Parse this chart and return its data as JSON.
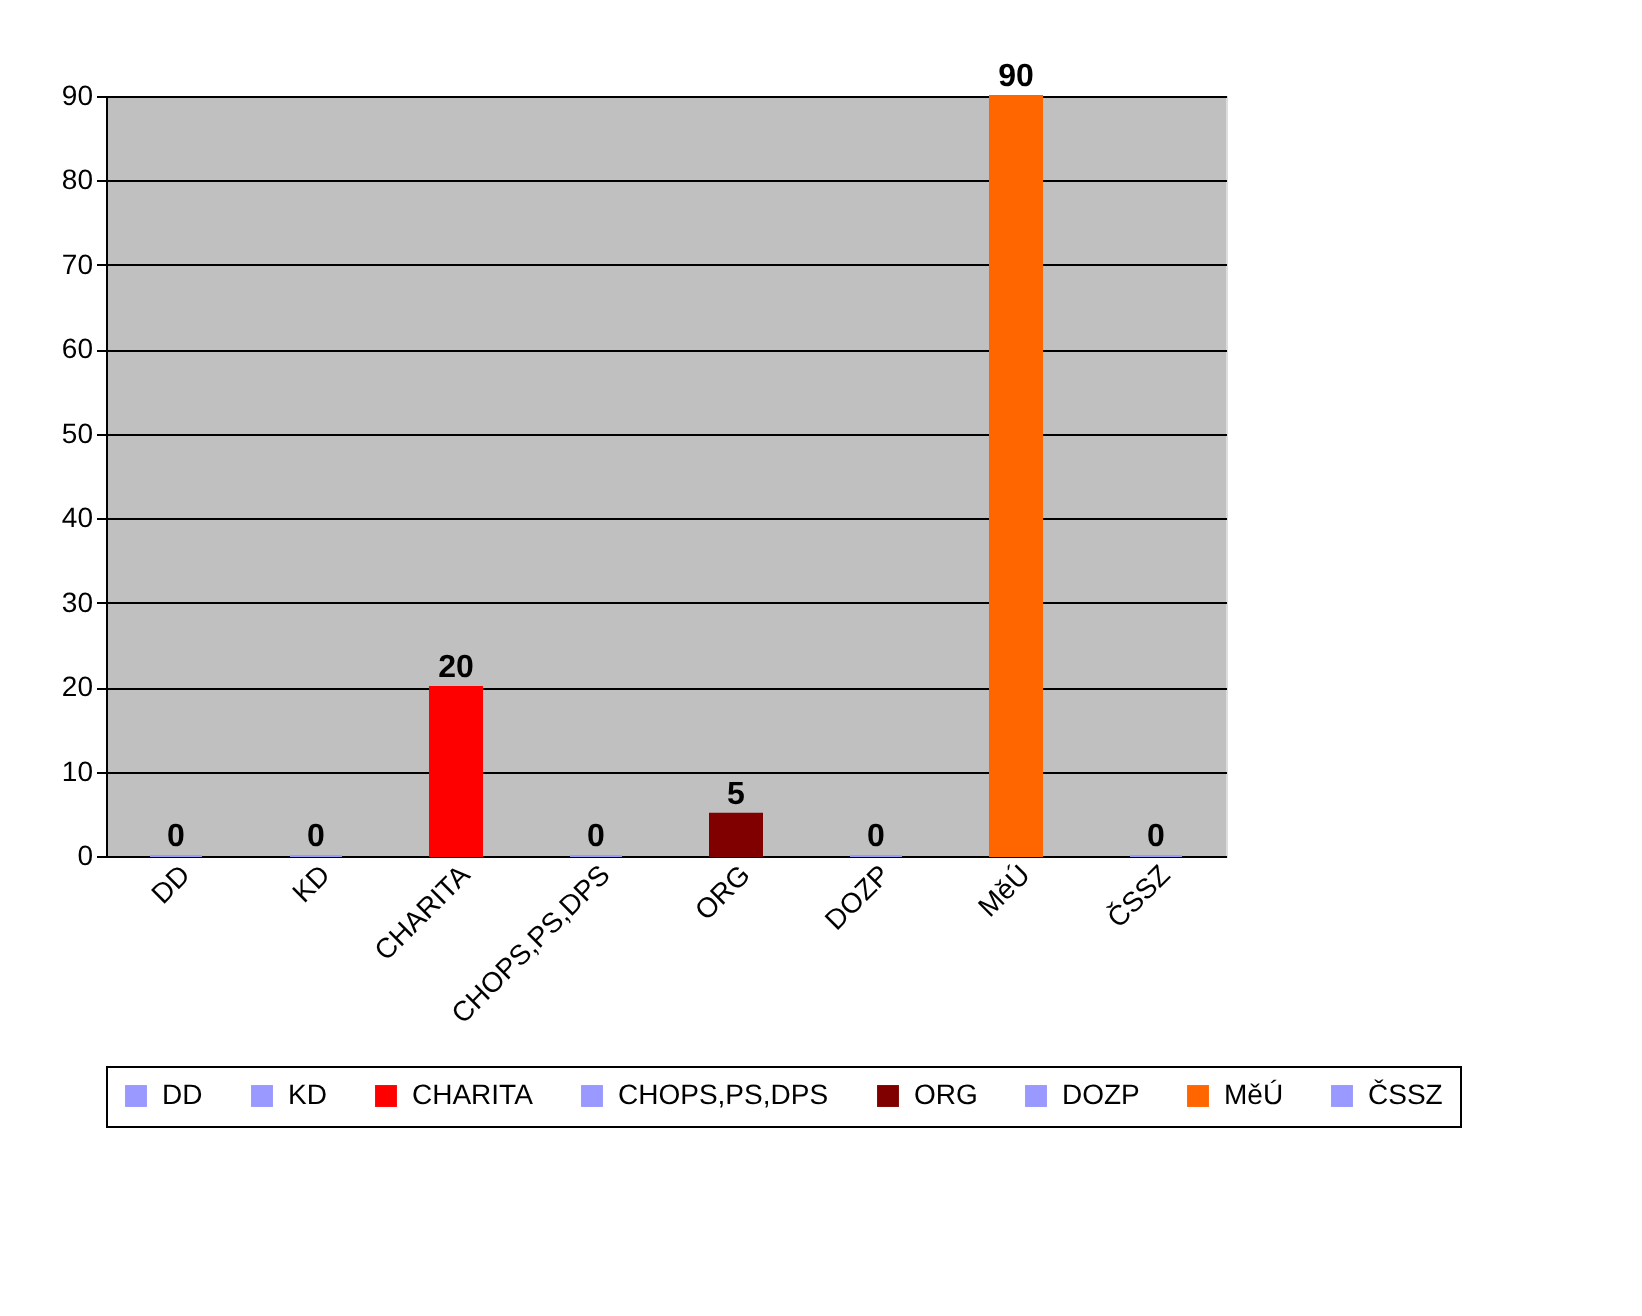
{
  "chart_data": {
    "type": "bar",
    "categories": [
      "DD",
      "KD",
      "CHARITA",
      "CHOPS,PS,DPS",
      "ORG",
      "DOZP",
      "MěÚ",
      "ČSSZ"
    ],
    "series": [
      {
        "name": "DD",
        "color": "#9999ff",
        "values": [
          0,
          null,
          null,
          null,
          null,
          null,
          null,
          null
        ]
      },
      {
        "name": "KD",
        "color": "#9999ff",
        "values": [
          null,
          0,
          null,
          null,
          null,
          null,
          null,
          null
        ]
      },
      {
        "name": "CHARITA",
        "color": "#ff0000",
        "values": [
          null,
          null,
          20,
          null,
          null,
          null,
          null,
          null
        ]
      },
      {
        "name": "CHOPS,PS,DPS",
        "color": "#9999ff",
        "values": [
          null,
          null,
          null,
          0,
          null,
          null,
          null,
          null
        ]
      },
      {
        "name": "ORG",
        "color": "#800000",
        "values": [
          null,
          null,
          null,
          null,
          5,
          null,
          null,
          null
        ]
      },
      {
        "name": "DOZP",
        "color": "#9999ff",
        "values": [
          null,
          null,
          null,
          null,
          null,
          0,
          null,
          null
        ]
      },
      {
        "name": "MěÚ",
        "color": "#ff6600",
        "values": [
          null,
          null,
          null,
          null,
          null,
          null,
          90,
          null
        ]
      },
      {
        "name": "ČSSZ",
        "color": "#9999ff",
        "values": [
          null,
          null,
          null,
          null,
          null,
          null,
          null,
          0
        ]
      }
    ],
    "ylim": [
      0,
      90
    ],
    "yticks": [
      0,
      10,
      20,
      30,
      40,
      50,
      60,
      70,
      80,
      90
    ],
    "grid": "y",
    "data_labels": true,
    "legend": "bottom"
  }
}
